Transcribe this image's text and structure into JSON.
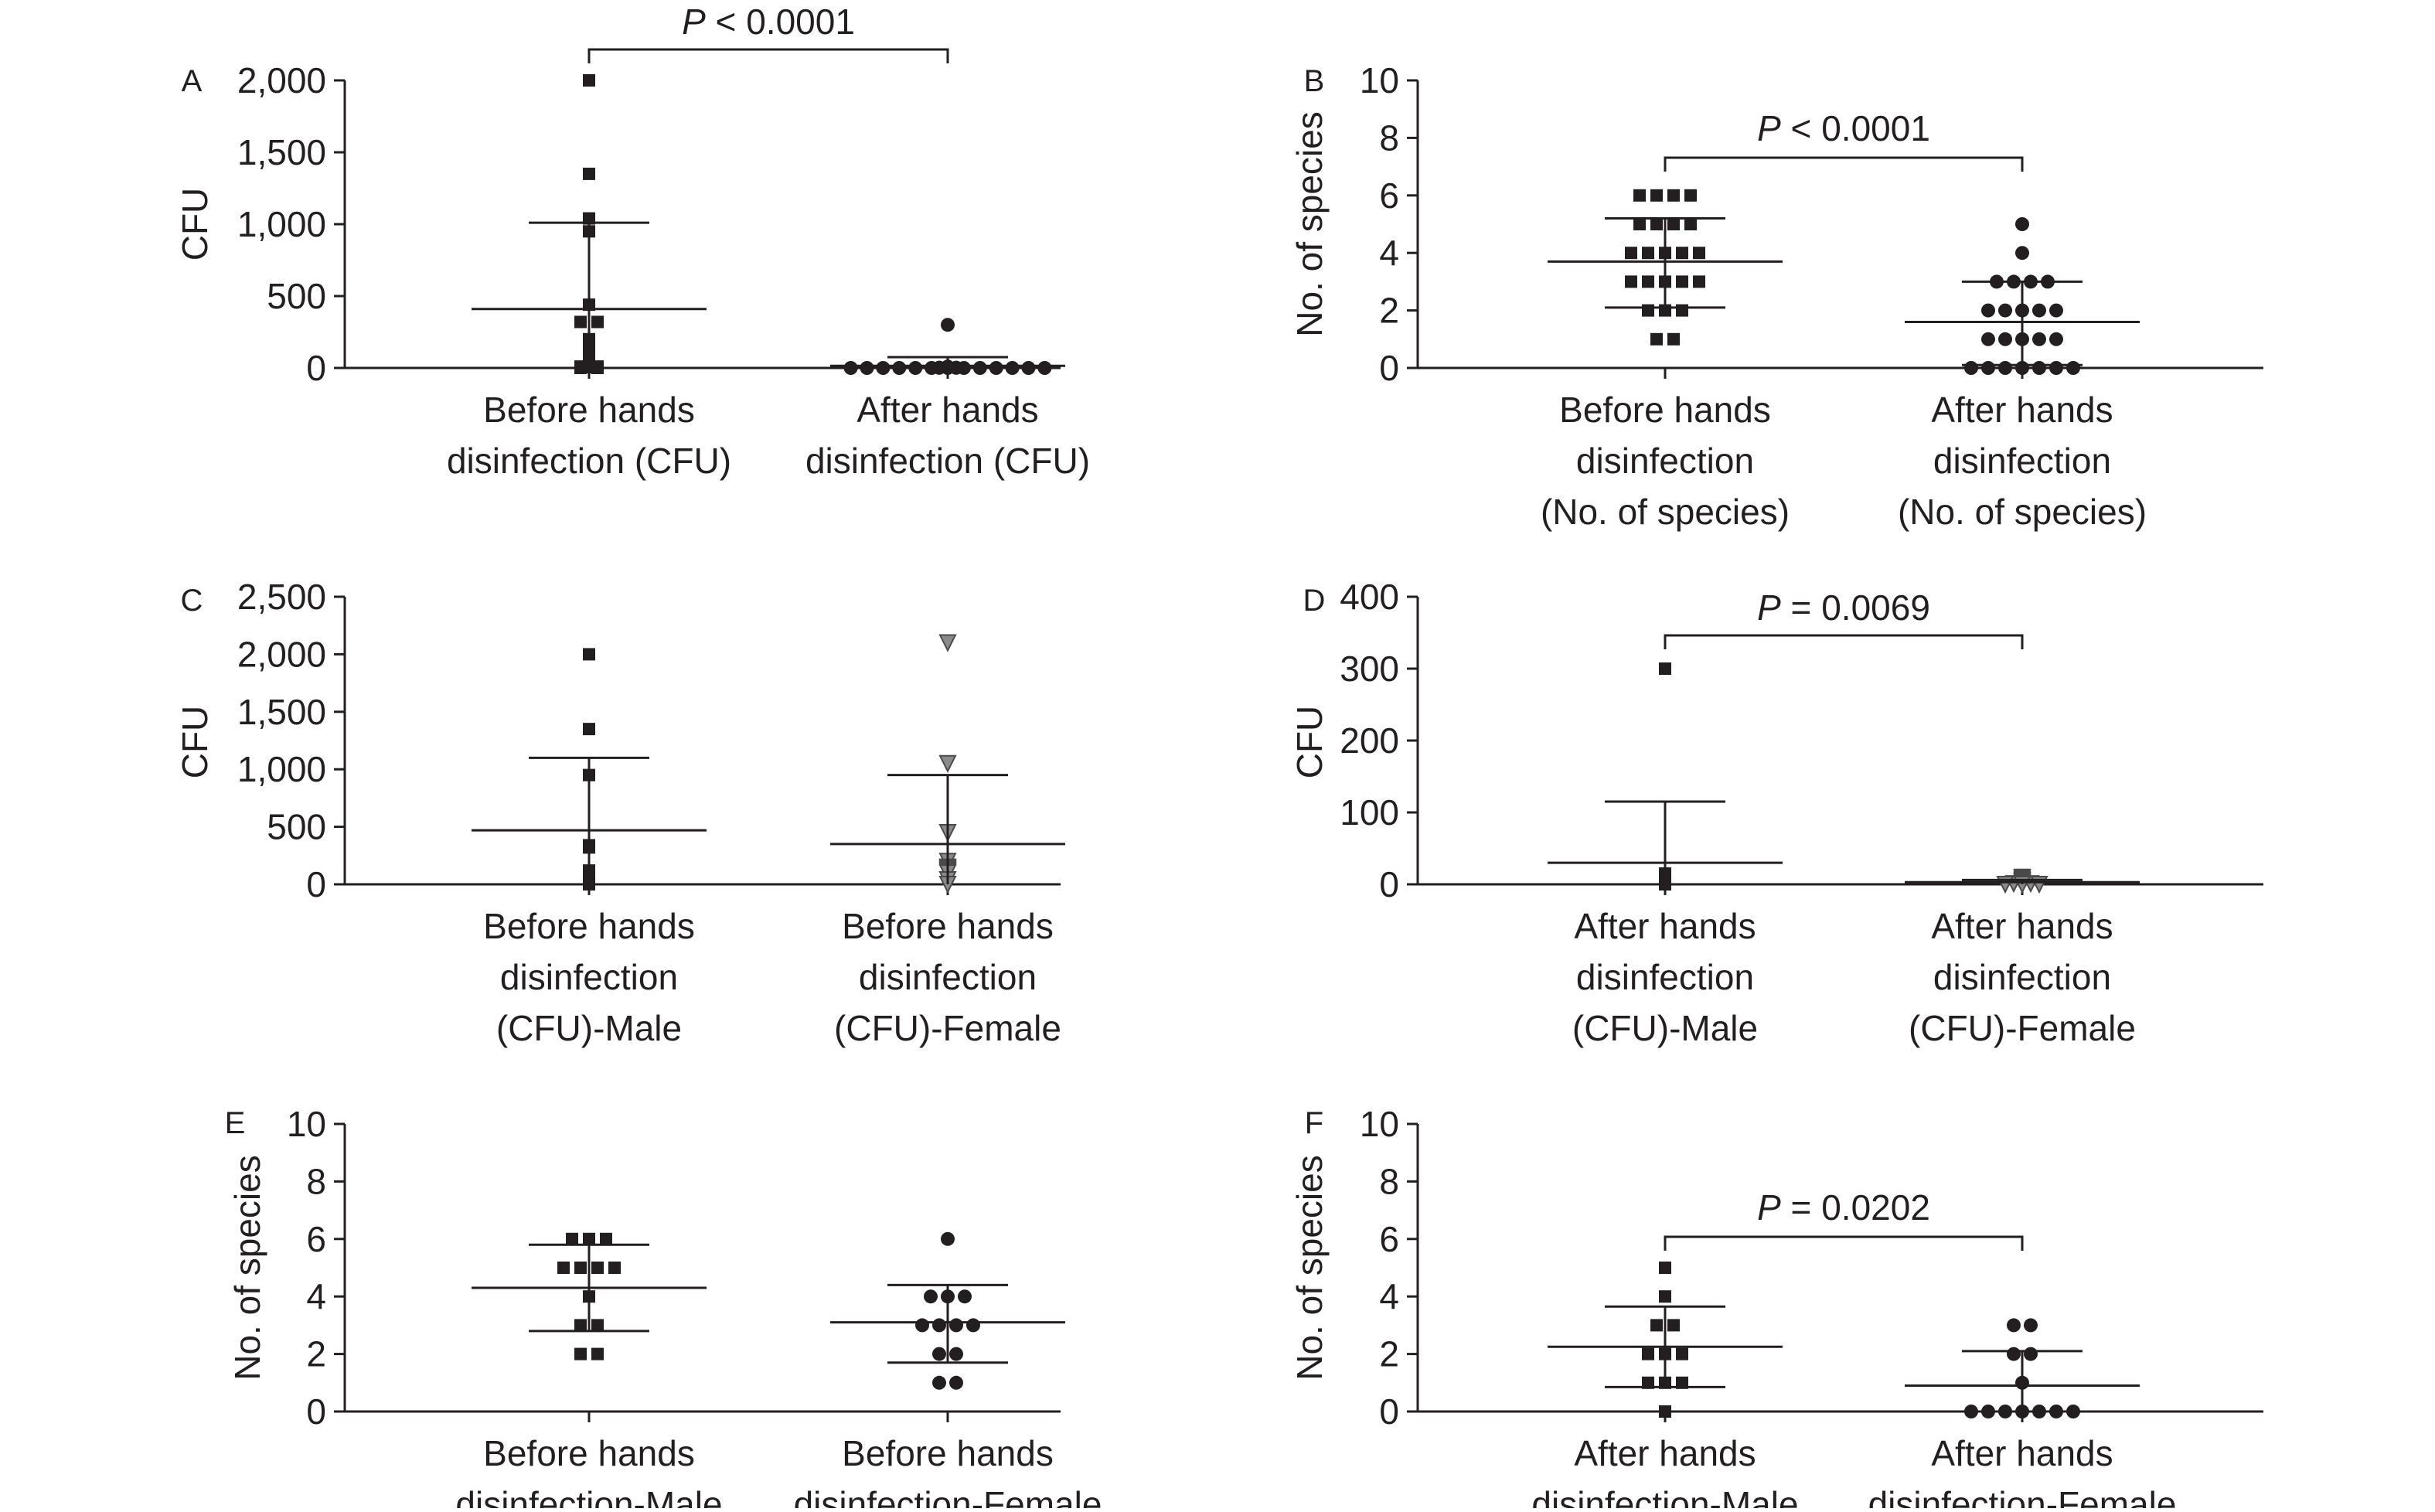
{
  "chart_data": [
    {
      "panel": "A",
      "type": "scatter",
      "ylabel": "CFU",
      "ylim": [
        0,
        2000
      ],
      "yticks": [
        0,
        500,
        1000,
        1500,
        2000
      ],
      "ytick_labels": [
        "0",
        "500",
        "1,000",
        "1,500",
        "2,000"
      ],
      "categories": [
        {
          "label_lines": [
            "Before hands",
            "disinfection (CFU)"
          ],
          "marker": "square",
          "mean": 410,
          "sd_low": 0,
          "sd_high": 1010,
          "points": [
            2000,
            1350,
            1040,
            950,
            440,
            320,
            320,
            200,
            190,
            120,
            110,
            100,
            90,
            80,
            70,
            60,
            40,
            30,
            20,
            10,
            10,
            5,
            0,
            0
          ]
        },
        {
          "label_lines": [
            "After hands",
            "disinfection (CFU)"
          ],
          "marker": "circle",
          "mean": 15,
          "sd_low": 0,
          "sd_high": 75,
          "points": [
            300,
            10,
            8,
            6,
            5,
            4,
            3,
            2,
            2,
            1,
            1,
            0,
            0,
            0,
            0,
            0,
            0,
            0,
            0,
            0,
            0,
            0,
            0,
            0
          ]
        }
      ],
      "pvalue": {
        "prefix": "P",
        "text": " < 0.0001"
      }
    },
    {
      "panel": "B",
      "type": "scatter",
      "ylabel": "No. of species",
      "ylim": [
        0,
        10
      ],
      "yticks": [
        0,
        2,
        4,
        6,
        8,
        10
      ],
      "ytick_labels": [
        "0",
        "2",
        "4",
        "6",
        "8",
        "10"
      ],
      "categories": [
        {
          "label_lines": [
            "Before hands",
            "disinfection",
            "(No. of species)"
          ],
          "marker": "square",
          "mean": 3.7,
          "sd_low": 2.1,
          "sd_high": 5.2,
          "points": [
            6,
            6,
            6,
            6,
            5,
            5,
            5,
            5,
            4,
            4,
            4,
            4,
            4,
            3,
            3,
            3,
            3,
            3,
            2,
            2,
            2,
            1,
            1
          ]
        },
        {
          "label_lines": [
            "After hands",
            "disinfection",
            "(No. of species)"
          ],
          "marker": "circle",
          "mean": 1.6,
          "sd_low": 0.1,
          "sd_high": 3.0,
          "points": [
            5,
            4,
            3,
            3,
            3,
            3,
            2,
            2,
            2,
            2,
            2,
            1,
            1,
            1,
            1,
            1,
            0,
            0,
            0,
            0,
            0,
            0,
            0
          ]
        }
      ],
      "pvalue": {
        "prefix": "P",
        "text": " < 0.0001"
      }
    },
    {
      "panel": "C",
      "type": "scatter",
      "ylabel": "CFU",
      "ylim": [
        0,
        2500
      ],
      "yticks": [
        0,
        500,
        1000,
        1500,
        2000,
        2500
      ],
      "ytick_labels": [
        "0",
        "500",
        "1,000",
        "1,500",
        "2,000",
        "2,500"
      ],
      "categories": [
        {
          "label_lines": [
            "Before hands",
            "disinfection",
            "(CFU)-Male"
          ],
          "marker": "square",
          "mean": 470,
          "sd_low": 0,
          "sd_high": 1100,
          "points": [
            2000,
            1350,
            950,
            340,
            320,
            120,
            110,
            100,
            40,
            30,
            10,
            0
          ]
        },
        {
          "label_lines": [
            "Before hands",
            "disinfection",
            "(CFU)-Female"
          ],
          "marker": "triangle",
          "mean": 350,
          "sd_low": 0,
          "sd_high": 950,
          "points": [
            2100,
            1050,
            450,
            200,
            150,
            140,
            130,
            120,
            110,
            100,
            40,
            0
          ]
        }
      ]
    },
    {
      "panel": "D",
      "type": "scatter",
      "ylabel": "CFU",
      "ylim": [
        0,
        400
      ],
      "yticks": [
        0,
        100,
        200,
        300,
        400
      ],
      "ytick_labels": [
        "0",
        "100",
        "200",
        "300",
        "400"
      ],
      "categories": [
        {
          "label_lines": [
            "After hands",
            "disinfection",
            "(CFU)-Male"
          ],
          "marker": "square",
          "mean": 30,
          "sd_low": 0,
          "sd_high": 115,
          "points": [
            300,
            15,
            12,
            10,
            8,
            6,
            5,
            4,
            3,
            2,
            1,
            0
          ]
        },
        {
          "label_lines": [
            "After hands",
            "disinfection",
            "(CFU)-Female"
          ],
          "marker": "triangle",
          "mean": 3,
          "sd_low": 0,
          "sd_high": 6,
          "points": [
            10,
            8,
            6,
            5,
            4,
            3,
            2,
            1,
            1,
            0,
            0,
            0
          ]
        }
      ],
      "pvalue": {
        "prefix": "P",
        "text": " = 0.0069"
      }
    },
    {
      "panel": "E",
      "type": "scatter",
      "ylabel": "No. of species",
      "ylim": [
        0,
        10
      ],
      "yticks": [
        0,
        2,
        4,
        6,
        8,
        10
      ],
      "ytick_labels": [
        "0",
        "2",
        "4",
        "6",
        "8",
        "10"
      ],
      "categories": [
        {
          "label_lines": [
            "Before hands",
            "disinfection-Male"
          ],
          "marker": "square",
          "mean": 4.3,
          "sd_low": 2.8,
          "sd_high": 5.8,
          "points": [
            6,
            6,
            6,
            5,
            5,
            5,
            5,
            4,
            3,
            3,
            2,
            2
          ]
        },
        {
          "label_lines": [
            "Before hands",
            "disinfection-Female"
          ],
          "marker": "circle",
          "mean": 3.1,
          "sd_low": 1.7,
          "sd_high": 4.4,
          "points": [
            6,
            4,
            4,
            4,
            3,
            3,
            3,
            3,
            2,
            2,
            1,
            1
          ]
        }
      ]
    },
    {
      "panel": "F",
      "type": "scatter",
      "ylabel": "No. of species",
      "ylim": [
        0,
        10
      ],
      "yticks": [
        0,
        2,
        4,
        6,
        8,
        10
      ],
      "ytick_labels": [
        "0",
        "2",
        "4",
        "6",
        "8",
        "10"
      ],
      "categories": [
        {
          "label_lines": [
            "After hands",
            "disinfection-Male"
          ],
          "marker": "square",
          "mean": 2.25,
          "sd_low": 0.85,
          "sd_high": 3.65,
          "points": [
            5,
            4,
            3,
            3,
            2,
            2,
            2,
            1,
            1,
            1,
            0
          ]
        },
        {
          "label_lines": [
            "After hands",
            "disinfection-Female"
          ],
          "marker": "circle",
          "mean": 0.9,
          "sd_low": 0,
          "sd_high": 2.1,
          "points": [
            3,
            3,
            2,
            2,
            1,
            0,
            0,
            0,
            0,
            0,
            0,
            0
          ]
        }
      ],
      "pvalue": {
        "prefix": "P",
        "text": " = 0.0202"
      }
    }
  ]
}
